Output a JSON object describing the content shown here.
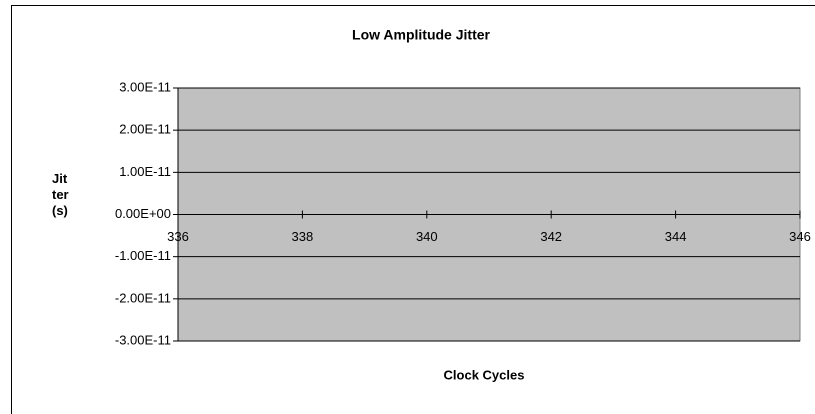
{
  "chart_data": {
    "type": "scatter",
    "title": "Low Amplitude Jitter",
    "xlabel": "Clock Cycles",
    "ylabel": "Jitter (s)",
    "series": [],
    "xlim": [
      336,
      346
    ],
    "xticks": [
      336,
      338,
      340,
      342,
      344,
      346
    ],
    "ylim": [
      -3e-11,
      3e-11
    ],
    "yticks": [
      {
        "value": 3e-11,
        "label": "3.00E-11"
      },
      {
        "value": 2e-11,
        "label": "2.00E-11"
      },
      {
        "value": 1e-11,
        "label": "1.00E-11"
      },
      {
        "value": 0,
        "label": "0.00E+00"
      },
      {
        "value": -1e-11,
        "label": "-1.00E-11"
      },
      {
        "value": -2e-11,
        "label": "-2.00E-11"
      },
      {
        "value": -3e-11,
        "label": "-3.00E-11"
      }
    ],
    "grid": true,
    "plot_color": "#c0c0c0"
  }
}
